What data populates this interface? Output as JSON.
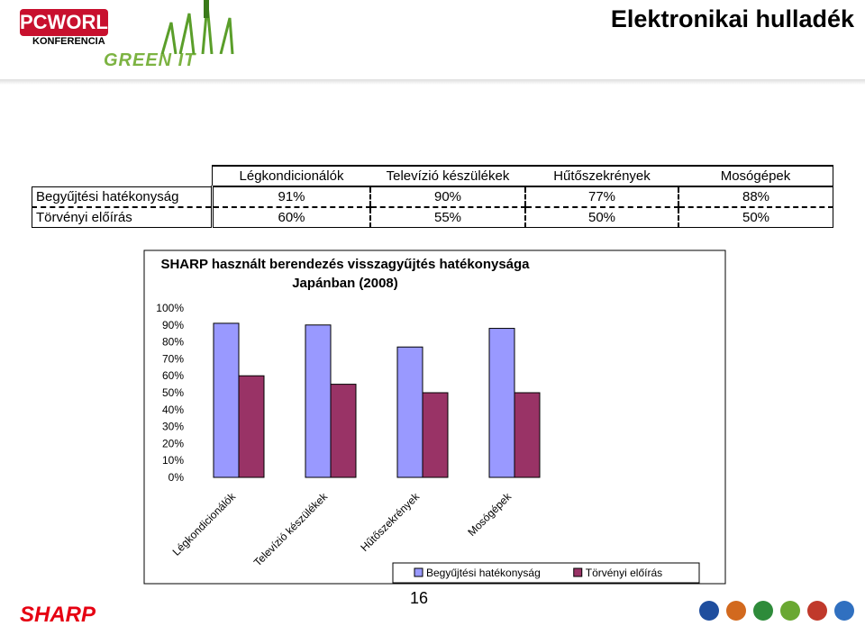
{
  "header": {
    "title": "Elektronikai hulladék",
    "logo_top": "PCWORLD",
    "logo_sub": "KONFERENCIA",
    "logo_green": "GREEN IT"
  },
  "table": {
    "columns": [
      "Légkondicionálók",
      "Televízió készülékek",
      "Hűtőszekrények",
      "Mosógépek"
    ],
    "rows": [
      [
        "Begyűjtési hatékonyság",
        "91%",
        "90%",
        "77%",
        "88%"
      ],
      [
        "Törvényi előírás",
        "60%",
        "55%",
        "50%",
        "50%"
      ]
    ]
  },
  "chart_data": {
    "type": "bar",
    "title": [
      "SHARP használt berendezés visszagyűjtés hatékonysága",
      "Japánban (2008)"
    ],
    "categories": [
      "Légkondicionálók",
      "Televízió készülékek",
      "Hűtőszekrények",
      "Mosógépek"
    ],
    "series": [
      {
        "name": "Begyűjtési hatékonyság",
        "color": "#9999ff",
        "values": [
          91,
          90,
          77,
          88
        ]
      },
      {
        "name": "Törvényi előírás",
        "color": "#993366",
        "values": [
          60,
          55,
          50,
          50
        ]
      }
    ],
    "ylim": [
      0,
      100
    ],
    "yticks": [
      {
        "value": 0,
        "label": "0%"
      },
      {
        "value": 10,
        "label": "10%"
      },
      {
        "value": 20,
        "label": "20%"
      },
      {
        "value": 30,
        "label": "30%"
      },
      {
        "value": 40,
        "label": "40%"
      },
      {
        "value": 50,
        "label": "50%"
      },
      {
        "value": 60,
        "label": "60%"
      },
      {
        "value": 70,
        "label": "70%"
      },
      {
        "value": 80,
        "label": "80%"
      },
      {
        "value": 90,
        "label": "90%"
      },
      {
        "value": 100,
        "label": "100%"
      }
    ],
    "legend": "bottom-right",
    "grid": false
  },
  "footer": {
    "brand": "SHARP",
    "page": "16"
  }
}
